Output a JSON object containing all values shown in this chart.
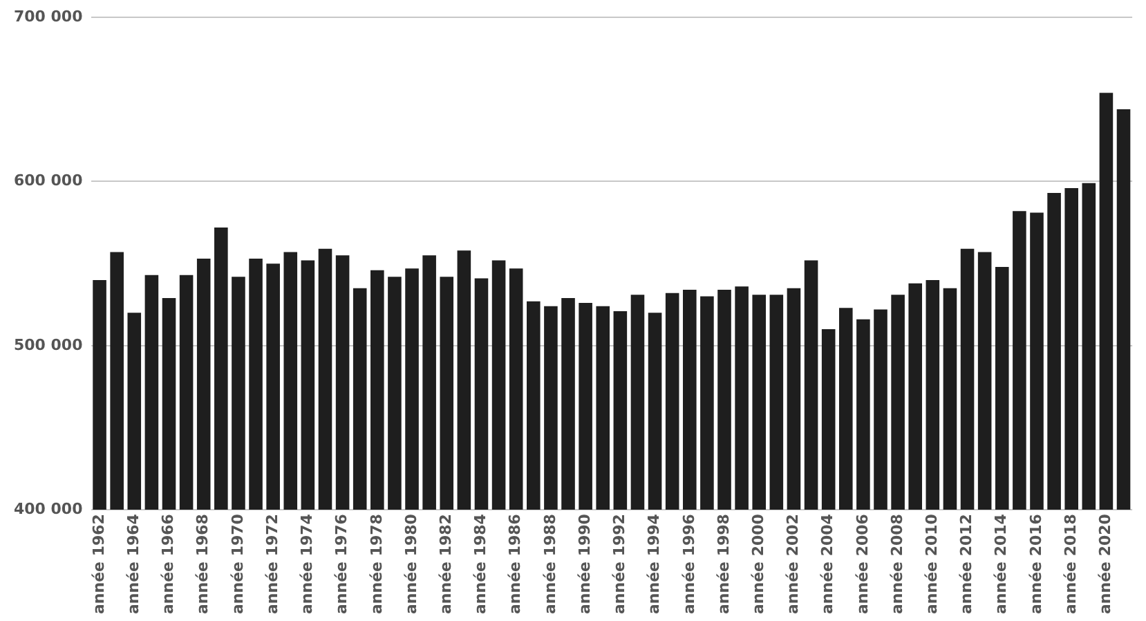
{
  "chart_data": {
    "type": "bar",
    "categories": [
      "année 1962",
      null,
      "année 1964",
      null,
      "année 1966",
      null,
      "année 1968",
      null,
      "année 1970",
      null,
      "année 1972",
      null,
      "année 1974",
      null,
      "année 1976",
      null,
      "année 1978",
      null,
      "année 1980",
      null,
      "année 1982",
      null,
      "année 1984",
      null,
      "année 1986",
      null,
      "année 1988",
      null,
      "année 1990",
      null,
      "année 1992",
      null,
      "année 1994",
      null,
      "année 1996",
      null,
      "année 1998",
      null,
      "année 2000",
      null,
      "année 2002",
      null,
      "année 2004",
      null,
      "année 2006",
      null,
      "année 2008",
      null,
      "année 2010",
      null,
      "année 2012",
      null,
      "année 2014",
      null,
      "année 2016",
      null,
      "année 2018",
      null,
      "année 2020",
      null
    ],
    "values": [
      540000,
      557000,
      520000,
      543000,
      529000,
      543000,
      553000,
      572000,
      542000,
      553000,
      550000,
      557000,
      552000,
      559000,
      555000,
      535000,
      546000,
      542000,
      547000,
      555000,
      542000,
      558000,
      541000,
      552000,
      547000,
      527000,
      524000,
      529000,
      526000,
      524000,
      521000,
      531000,
      520000,
      532000,
      534000,
      530000,
      534000,
      536000,
      531000,
      531000,
      535000,
      552000,
      510000,
      523000,
      516000,
      522000,
      531000,
      538000,
      540000,
      535000,
      559000,
      557000,
      548000,
      582000,
      581000,
      593000,
      596000,
      599000,
      654000,
      644000
    ],
    "color": "#1e1e1e",
    "ylim": [
      400000,
      700000
    ],
    "yticks": [
      {
        "value": 400000,
        "label": "400 000"
      },
      {
        "value": 500000,
        "label": "500 000"
      },
      {
        "value": 600000,
        "label": "600 000"
      },
      {
        "value": 700000,
        "label": "700 000"
      }
    ],
    "grid": "y"
  }
}
